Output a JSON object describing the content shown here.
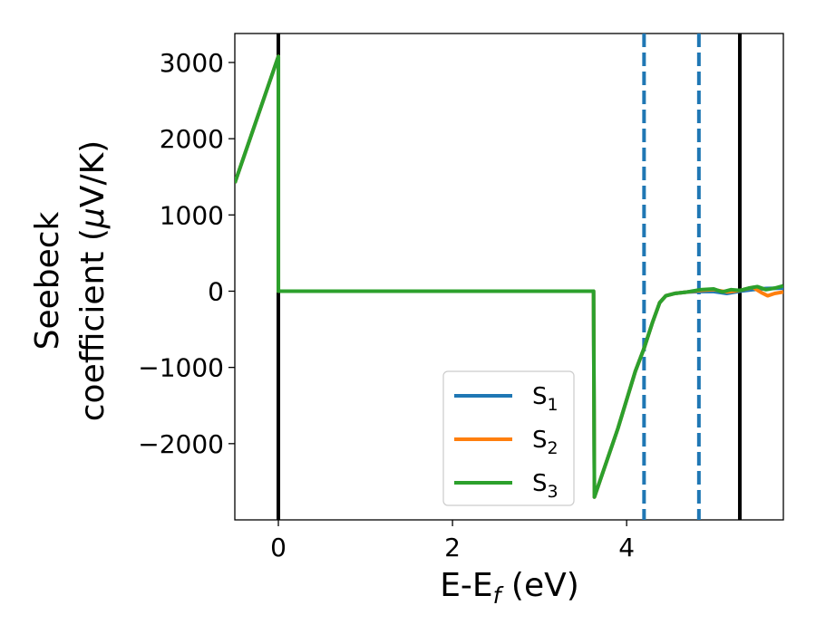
{
  "chart_data": {
    "type": "line",
    "xlabel_main": "E-E",
    "xlabel_sub": "f",
    "xlabel_unit": " (eV)",
    "ylabel_line1": "Seebeck",
    "ylabel_line2_prefix": "coefficient  (",
    "ylabel_mu": "μ",
    "ylabel_line2_suffix": "V/K)",
    "xlim": [
      -0.5,
      5.8
    ],
    "ylim": [
      -3000,
      3380
    ],
    "x_ticks": [
      0,
      2,
      4
    ],
    "x_tick_labels": [
      "0",
      "2",
      "4"
    ],
    "y_ticks": [
      -2000,
      -1000,
      0,
      1000,
      2000,
      3000
    ],
    "y_tick_labels": [
      "−2000",
      "−1000",
      "0",
      "1000",
      "2000",
      "3000"
    ],
    "vlines_solid": [
      0,
      5.3
    ],
    "vlines_dashed": [
      4.2,
      4.83
    ],
    "vline_solid_color": "#000000",
    "vline_dashed_color": "#1f77b4",
    "legend_position": "lower-right",
    "series": [
      {
        "name": "S",
        "sub": "1",
        "color": "#1f77b4",
        "x": [
          -0.5,
          0.0,
          0.0,
          3.62,
          3.62,
          3.63,
          3.9,
          4.1,
          4.2,
          4.3,
          4.38,
          4.45,
          4.55,
          4.7,
          4.85,
          5.0,
          5.15,
          5.3,
          5.45,
          5.6,
          5.8
        ],
        "y": [
          1420,
          3080,
          0,
          0,
          0,
          -2700,
          -1800,
          -1050,
          -750,
          -400,
          -150,
          -60,
          -30,
          -10,
          -5,
          -5,
          -30,
          0,
          20,
          35,
          40
        ]
      },
      {
        "name": "S",
        "sub": "2",
        "color": "#ff7f0e",
        "x": [
          -0.5,
          0.0,
          0.0,
          3.62,
          3.62,
          3.63,
          3.9,
          4.1,
          4.2,
          4.3,
          4.38,
          4.45,
          4.55,
          4.7,
          4.85,
          5.0,
          5.15,
          5.3,
          5.45,
          5.55,
          5.62,
          5.7,
          5.8
        ],
        "y": [
          1420,
          3080,
          0,
          0,
          0,
          -2700,
          -1800,
          -1050,
          -750,
          -400,
          -150,
          -60,
          -30,
          -10,
          10,
          20,
          -10,
          10,
          50,
          -20,
          -60,
          -30,
          -10
        ]
      },
      {
        "name": "S",
        "sub": "3",
        "color": "#2ca02c",
        "x": [
          -0.5,
          0.0,
          0.0,
          3.62,
          3.62,
          3.63,
          3.9,
          4.1,
          4.2,
          4.3,
          4.38,
          4.45,
          4.55,
          4.7,
          4.85,
          5.0,
          5.1,
          5.2,
          5.3,
          5.4,
          5.5,
          5.6,
          5.7,
          5.8
        ],
        "y": [
          1420,
          3080,
          0,
          0,
          0,
          -2700,
          -1800,
          -1050,
          -750,
          -400,
          -150,
          -60,
          -30,
          -10,
          20,
          30,
          -10,
          20,
          10,
          40,
          60,
          20,
          40,
          70
        ]
      }
    ]
  }
}
